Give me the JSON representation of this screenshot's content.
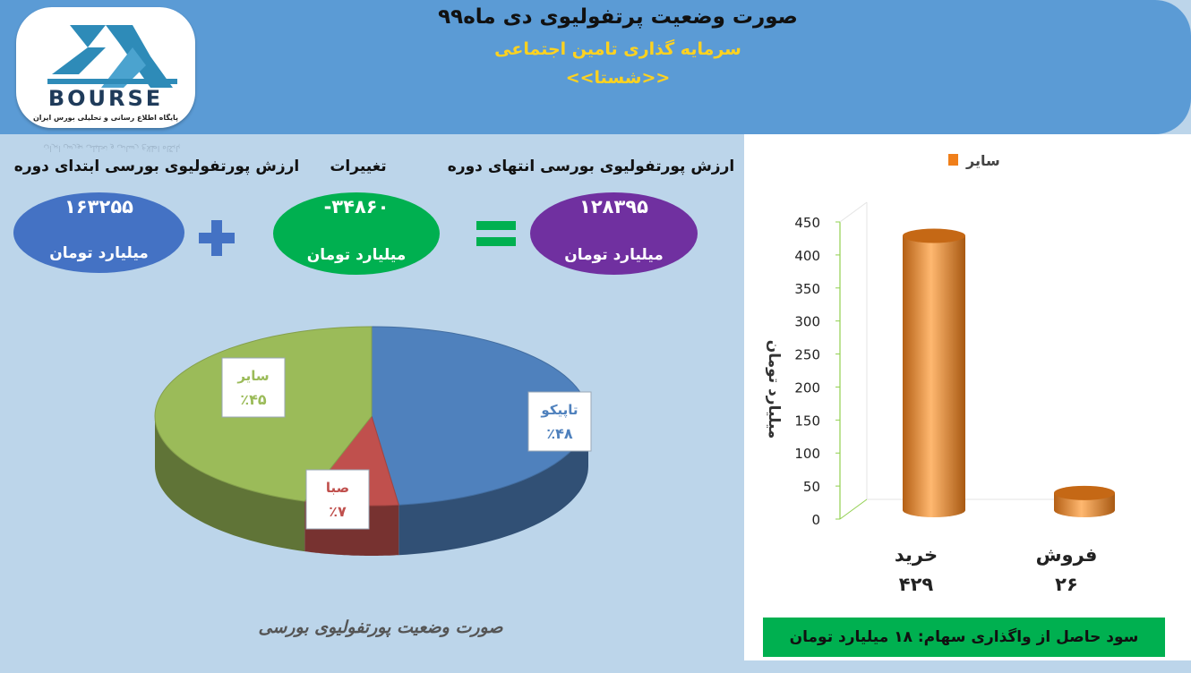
{
  "header": {
    "title": "صورت وضعیت پرتفولیوی دی ماه۹۹",
    "subtitle": "سرمایه گذاری تامین اجتماعی",
    "short_name": "<<شستا>>"
  },
  "logo": {
    "name": "BOURSE",
    "tagline": "پایگاه اطلاع رسانی و تحلیلی بورس ایران"
  },
  "summary": {
    "start_label": "ارزش پورتفولیوی بورسی ابتدای دوره",
    "start_value": "۱۶۳۲۵۵",
    "start_unit": "میلیارد تومان",
    "change_label": "تغییرات",
    "change_value": "-۳۴۸۶۰",
    "change_unit": "میلیارد تومان",
    "end_label": "ارزش پورتفولیوی بورسی انتهای دوره",
    "end_value": "۱۲۸۳۹۵",
    "end_unit": "میلیارد تومان"
  },
  "colors": {
    "header": "#5b9bd5",
    "background": "#bcd5ea",
    "oval_start": "#4472c4",
    "oval_change": "#00b050",
    "oval_end": "#7030a0",
    "operator": "#4472c4",
    "equals": "#00b050",
    "pie_tapico": "#4f81bd",
    "pie_saba": "#c0504d",
    "pie_other": "#9bbb59",
    "bar": "#f07f1a",
    "profit_box": "#00b050"
  },
  "pie_caption": "صورت وضعیت پورتفولیوی بورسی",
  "profit_text": "سود حاصل از واگذاری سهام: ۱۸ میلیارد تومان",
  "chart_data": [
    {
      "type": "pie",
      "title": "صورت وضعیت پورتفولیوی بورسی",
      "slices": [
        {
          "name": "تاپیکو",
          "value": 48,
          "label": "٪۴۸",
          "color": "#4f81bd"
        },
        {
          "name": "صبا",
          "value": 7,
          "label": "٪۷",
          "color": "#c0504d"
        },
        {
          "name": "سایر",
          "value": 45,
          "label": "٪۴۵",
          "color": "#9bbb59"
        }
      ]
    },
    {
      "type": "bar",
      "categories": [
        "خرید",
        "فروش"
      ],
      "category_values": [
        "۴۲۹",
        "۲۶"
      ],
      "series": [
        {
          "name": "سایر",
          "values": [
            429,
            26
          ],
          "color": "#f07f1a"
        }
      ],
      "ylabel": "میلیارد تومان",
      "ylim": [
        0,
        450
      ],
      "yticks": [
        0,
        50,
        100,
        150,
        200,
        250,
        300,
        350,
        400,
        450
      ],
      "legend": "top-right",
      "grid": false
    }
  ]
}
